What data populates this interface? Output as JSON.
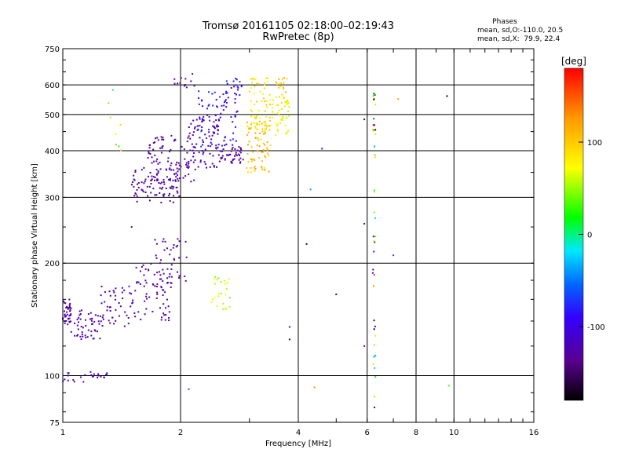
{
  "header": {
    "title": "Tromsø 20161105 02:18:00–02:19:43",
    "subtitle": "RwPretec (8p)"
  },
  "phases_box": {
    "title": "Phases",
    "line1": "mean, sd,O:-110.0, 20.5",
    "line2": "mean, sd,X:  79.9, 22.4"
  },
  "chart_data": {
    "type": "scatter",
    "xlabel": "Frequency [MHz]",
    "ylabel": "Stationary phase Virtual Height [km]",
    "xscale": "log",
    "yscale": "log",
    "xlim": [
      1,
      16
    ],
    "ylim": [
      75,
      750
    ],
    "xticks": [
      1,
      2,
      4,
      6,
      8,
      10,
      16
    ],
    "yticks": [
      75,
      100,
      200,
      300,
      400,
      500,
      600,
      750
    ],
    "grid": true,
    "colorbar": {
      "label": "[deg]",
      "ticks": [
        100,
        0,
        -100
      ],
      "range": [
        -180,
        180
      ],
      "colormap": [
        "#000000",
        "#5a0090",
        "#3300ff",
        "#0066ff",
        "#00e8ff",
        "#00ff00",
        "#ffff00",
        "#ff9900",
        "#ff0000"
      ]
    },
    "clusters": [
      {
        "name": "",
        "fmin": 1.0,
        "fmax": 1.05,
        "hmin": 135,
        "hmax": 160,
        "phase_min": -140,
        "phase_max": -110,
        "count": 40
      },
      {
        "name": "",
        "fmin": 1.05,
        "fmax": 1.25,
        "hmin": 125,
        "hmax": 150,
        "phase_min": -140,
        "phase_max": -110,
        "count": 50
      },
      {
        "name": "",
        "fmin": 1.0,
        "fmax": 1.3,
        "hmin": 96,
        "hmax": 103,
        "phase_min": -125,
        "phase_max": -100,
        "count": 25
      },
      {
        "name": "",
        "fmin": 1.25,
        "fmax": 1.5,
        "hmin": 135,
        "hmax": 175,
        "phase_min": -140,
        "phase_max": -110,
        "count": 45
      },
      {
        "name": "",
        "fmin": 1.5,
        "fmax": 1.9,
        "hmin": 140,
        "hmax": 200,
        "phase_min": -140,
        "phase_max": -110,
        "count": 70
      },
      {
        "name": "",
        "fmin": 1.7,
        "fmax": 2.1,
        "hmin": 175,
        "hmax": 240,
        "phase_min": -140,
        "phase_max": -110,
        "count": 40
      },
      {
        "name": "",
        "fmin": 1.5,
        "fmax": 2.0,
        "hmin": 290,
        "hmax": 360,
        "phase_min": -150,
        "phase_max": -115,
        "count": 90
      },
      {
        "name": "",
        "fmin": 1.65,
        "fmax": 2.2,
        "hmin": 330,
        "hmax": 440,
        "phase_min": -140,
        "phase_max": -110,
        "count": 90
      },
      {
        "name": "",
        "fmin": 2.1,
        "fmax": 2.6,
        "hmin": 360,
        "hmax": 500,
        "phase_min": -130,
        "phase_max": -100,
        "count": 80
      },
      {
        "name": "",
        "fmin": 2.2,
        "fmax": 2.8,
        "hmin": 410,
        "hmax": 580,
        "phase_min": -120,
        "phase_max": -60,
        "count": 70
      },
      {
        "name": "",
        "fmin": 2.5,
        "fmax": 2.9,
        "hmin": 370,
        "hmax": 410,
        "phase_min": -140,
        "phase_max": -120,
        "count": 40
      },
      {
        "name": "",
        "fmin": 2.6,
        "fmax": 2.9,
        "hmin": 530,
        "hmax": 630,
        "phase_min": -110,
        "phase_max": -70,
        "count": 20
      },
      {
        "name": "",
        "fmin": 1.9,
        "fmax": 2.2,
        "hmin": 590,
        "hmax": 650,
        "phase_min": -150,
        "phase_max": -120,
        "count": 12
      },
      {
        "name": "",
        "fmin": 2.95,
        "fmax": 3.4,
        "hmin": 350,
        "hmax": 480,
        "phase_min": 85,
        "phase_max": 125,
        "count": 80
      },
      {
        "name": "",
        "fmin": 3.0,
        "fmax": 3.4,
        "hmin": 450,
        "hmax": 630,
        "phase_min": 60,
        "phase_max": 105,
        "count": 60
      },
      {
        "name": "",
        "fmin": 3.4,
        "fmax": 3.8,
        "hmin": 430,
        "hmax": 560,
        "phase_min": 55,
        "phase_max": 95,
        "count": 50
      },
      {
        "name": "",
        "fmin": 3.5,
        "fmax": 3.75,
        "hmin": 560,
        "hmax": 630,
        "phase_min": 90,
        "phase_max": 115,
        "count": 15
      },
      {
        "name": "",
        "fmin": 2.4,
        "fmax": 2.7,
        "hmin": 150,
        "hmax": 185,
        "phase_min": 40,
        "phase_max": 80,
        "count": 25
      },
      {
        "name": "",
        "fmin": 6.2,
        "fmax": 6.3,
        "hmin": 80,
        "hmax": 600,
        "phase_min": -180,
        "phase_max": 180,
        "count": 45
      },
      {
        "name": "",
        "fmin": 1.3,
        "fmax": 1.45,
        "hmin": 400,
        "hmax": 600,
        "phase_min": 0,
        "phase_max": 160,
        "count": 8
      }
    ],
    "isolated_points": [
      {
        "x": 4.3,
        "y": 315,
        "phase": -40
      },
      {
        "x": 4.6,
        "y": 405,
        "phase": -110
      },
      {
        "x": 5.0,
        "y": 165,
        "phase": -150
      },
      {
        "x": 4.2,
        "y": 225,
        "phase": -150
      },
      {
        "x": 7.0,
        "y": 210,
        "phase": -60
      },
      {
        "x": 7.2,
        "y": 550,
        "phase": 120
      },
      {
        "x": 9.6,
        "y": 560,
        "phase": -170
      },
      {
        "x": 9.7,
        "y": 94,
        "phase": 30
      },
      {
        "x": 4.4,
        "y": 93,
        "phase": 130
      },
      {
        "x": 3.8,
        "y": 125,
        "phase": -150
      },
      {
        "x": 3.8,
        "y": 135,
        "phase": -130
      },
      {
        "x": 5.9,
        "y": 120,
        "phase": -130
      },
      {
        "x": 5.9,
        "y": 485,
        "phase": -150
      },
      {
        "x": 5.9,
        "y": 255,
        "phase": -140
      },
      {
        "x": 2.1,
        "y": 92,
        "phase": -60
      },
      {
        "x": 1.5,
        "y": 250,
        "phase": -140
      }
    ]
  }
}
